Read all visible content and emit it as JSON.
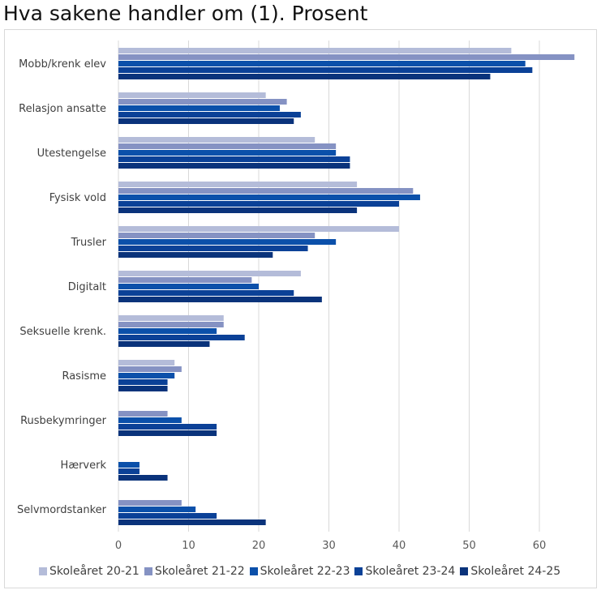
{
  "title": "Hva sakene handler om (1). Prosent",
  "chart_data": {
    "type": "bar",
    "orientation": "horizontal",
    "title": "Hva sakene handler om (1). Prosent",
    "categories": [
      "Mobb/krenk elev",
      "Relasjon ansatte",
      "Utestengelse",
      "Fysisk vold",
      "Trusler",
      "Digitalt",
      "Seksuelle krenk.",
      "Rasisme",
      "Rusbekymringer",
      "Hærverk",
      "Selvmordstanker"
    ],
    "series": [
      {
        "name": "Skoleåret 20-21",
        "color": "#b4bcd9",
        "values": [
          56,
          21,
          28,
          34,
          40,
          26,
          15,
          8,
          0,
          0,
          0
        ]
      },
      {
        "name": "Skoleåret 21-22",
        "color": "#8592c3",
        "values": [
          65,
          24,
          31,
          42,
          28,
          19,
          15,
          9,
          7,
          0,
          9
        ]
      },
      {
        "name": "Skoleåret 22-23",
        "color": "#0b50aa",
        "values": [
          58,
          23,
          31,
          43,
          31,
          20,
          14,
          8,
          9,
          3,
          11
        ]
      },
      {
        "name": "Skoleåret 23-24",
        "color": "#0b4197",
        "values": [
          59,
          26,
          33,
          40,
          27,
          25,
          18,
          7,
          14,
          3,
          14
        ]
      },
      {
        "name": "Skoleåret 24-25",
        "color": "#0a337b",
        "values": [
          53,
          25,
          33,
          34,
          22,
          29,
          13,
          7,
          14,
          7,
          21
        ]
      }
    ],
    "xticks": [
      0,
      10,
      20,
      30,
      40,
      50,
      60
    ],
    "xlim": [
      0,
      64
    ],
    "grid": true,
    "legend": "bottom"
  }
}
